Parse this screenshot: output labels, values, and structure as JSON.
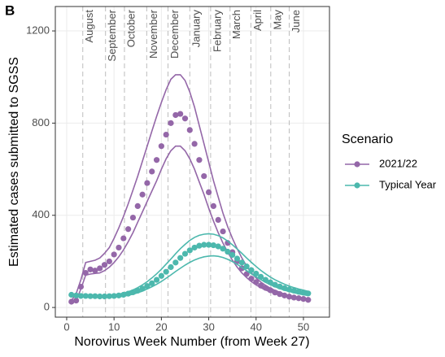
{
  "chart_data": {
    "type": "scatter",
    "panel_label": "B",
    "x_label": "Norovirus Week Number (from Week 27)",
    "y_label": "Estimated cases submitted to SGSS",
    "legend_title": "Scenario",
    "x": [
      1,
      2,
      3,
      4,
      5,
      6,
      7,
      8,
      9,
      10,
      11,
      12,
      13,
      14,
      15,
      16,
      17,
      18,
      19,
      20,
      21,
      22,
      23,
      24,
      25,
      26,
      27,
      28,
      29,
      30,
      31,
      32,
      33,
      34,
      35,
      36,
      37,
      38,
      39,
      40,
      41,
      42,
      43,
      44,
      45,
      46,
      47,
      48,
      49,
      50,
      51
    ],
    "series": [
      {
        "name": "2021/22",
        "color": "#9467a8",
        "values": [
          25,
          30,
          90,
          150,
          165,
          160,
          170,
          185,
          200,
          230,
          260,
          300,
          340,
          390,
          440,
          490,
          540,
          590,
          640,
          700,
          750,
          800,
          835,
          840,
          820,
          770,
          710,
          640,
          570,
          500,
          440,
          380,
          330,
          280,
          240,
          200,
          170,
          145,
          125,
          110,
          95,
          85,
          75,
          65,
          58,
          52,
          47,
          43,
          40,
          37,
          33
        ],
        "upper": [
          30,
          60,
          120,
          195,
          200,
          205,
          215,
          235,
          260,
          300,
          345,
          395,
          450,
          510,
          570,
          635,
          700,
          765,
          830,
          890,
          945,
          990,
          1010,
          1010,
          985,
          935,
          870,
          790,
          710,
          630,
          550,
          480,
          410,
          350,
          300,
          255,
          215,
          180,
          150,
          128,
          110,
          96,
          84,
          74,
          66,
          58,
          52,
          47,
          43,
          40,
          36
        ],
        "lower": [
          20,
          30,
          80,
          140,
          145,
          148,
          150,
          160,
          175,
          195,
          220,
          250,
          285,
          325,
          370,
          415,
          460,
          505,
          550,
          600,
          645,
          680,
          700,
          700,
          680,
          645,
          600,
          545,
          490,
          430,
          375,
          325,
          280,
          240,
          205,
          175,
          150,
          130,
          112,
          98,
          86,
          76,
          68,
          60,
          53,
          48,
          44,
          40,
          37,
          34,
          31
        ]
      },
      {
        "name": "Typical Year",
        "color": "#4cb8ad",
        "values": [
          55,
          52,
          50,
          50,
          49,
          49,
          48,
          48,
          49,
          50,
          52,
          55,
          60,
          66,
          73,
          82,
          93,
          105,
          120,
          137,
          155,
          175,
          195,
          215,
          233,
          248,
          260,
          268,
          272,
          272,
          270,
          265,
          255,
          242,
          228,
          212,
          195,
          178,
          162,
          147,
          133,
          120,
          109,
          99,
          91,
          84,
          78,
          73,
          68,
          64,
          61
        ],
        "upper": [
          58,
          55,
          53,
          52,
          52,
          52,
          52,
          52,
          53,
          55,
          58,
          62,
          68,
          76,
          86,
          98,
          112,
          128,
          146,
          166,
          188,
          210,
          233,
          255,
          274,
          291,
          304,
          313,
          318,
          320,
          318,
          312,
          302,
          288,
          272,
          254,
          235,
          215,
          196,
          178,
          161,
          146,
          132,
          120,
          110,
          101,
          93,
          86,
          80,
          75,
          70
        ],
        "lower": [
          52,
          50,
          48,
          47,
          46,
          46,
          45,
          45,
          45,
          46,
          47,
          49,
          53,
          58,
          64,
          71,
          80,
          90,
          101,
          113,
          127,
          141,
          156,
          170,
          184,
          196,
          206,
          214,
          220,
          223,
          224,
          222,
          217,
          209,
          199,
          187,
          174,
          160,
          146,
          133,
          121,
          109,
          99,
          90,
          82,
          75,
          69,
          64,
          59,
          55,
          52
        ]
      }
    ],
    "month_lines": [
      3.4,
      8.2,
      12.2,
      16.9,
      21.4,
      26,
      30.4,
      34.5,
      38.9,
      43.1,
      47
    ],
    "month_labels": [
      "August",
      "September",
      "October",
      "November",
      "December",
      "January",
      "February",
      "March",
      "April",
      "May",
      "June"
    ],
    "xlim": [
      -2.4,
      55.5
    ],
    "ylim": [
      -42,
      1306
    ],
    "xticks": [
      0,
      10,
      20,
      30,
      40,
      50
    ],
    "yticks": [
      0,
      400,
      800,
      1200
    ],
    "grid": true
  }
}
